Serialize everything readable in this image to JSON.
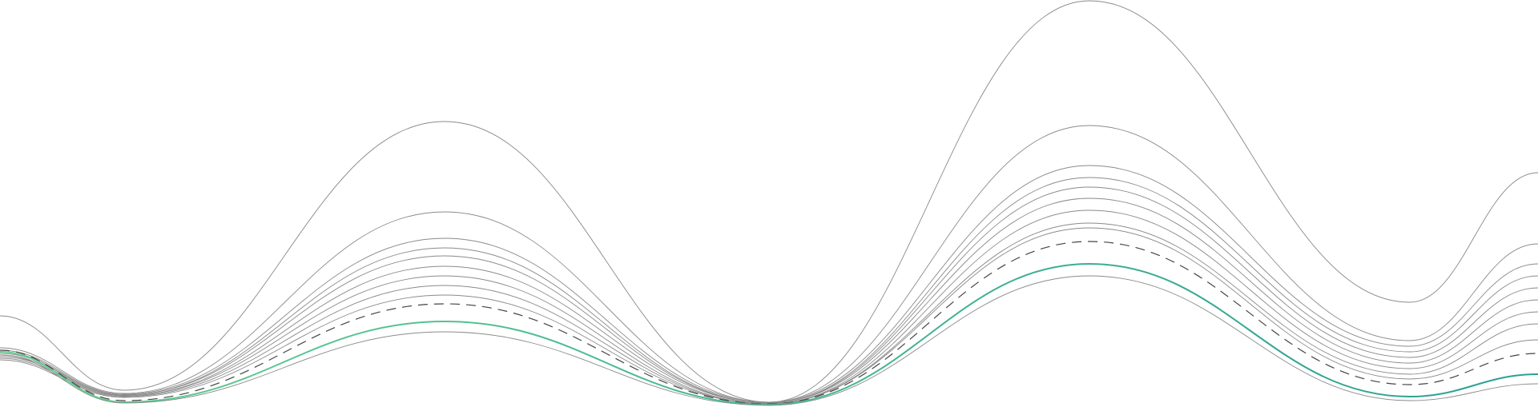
{
  "chart_data": {
    "type": "line",
    "title": "",
    "xlabel": "",
    "ylabel": "",
    "grid": false,
    "legend": "none",
    "axes_visible": false,
    "colors": {
      "background": "#ffffff",
      "thin": "#8a8a8a",
      "dashed": "#444444",
      "gradient_start": "#63cf92",
      "gradient_end": "#2a9f93"
    },
    "curve_styles": [
      "thin",
      "thin",
      "thin",
      "thin",
      "thin",
      "thin",
      "thin",
      "thin",
      "thin",
      "dashed",
      "gradient",
      "thin"
    ]
  }
}
